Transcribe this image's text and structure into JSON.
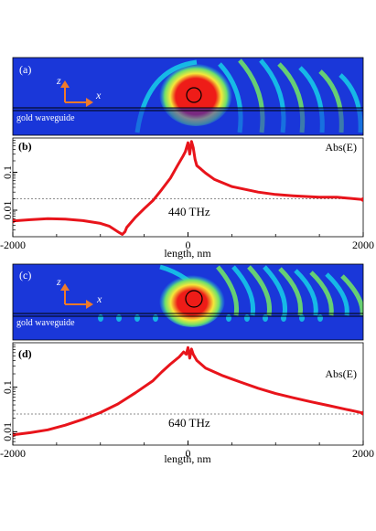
{
  "colors": {
    "curve": "#e8141b",
    "field_bg": "#1a37d9",
    "field_cyan": "#16c8e8",
    "field_green": "#6fe06a",
    "field_yellow": "#f5e83a",
    "field_red": "#ee1c18",
    "axis_arrow": "#f07a2a",
    "dashed": "#666666",
    "waveguide_line": "#000000"
  },
  "panels": {
    "a": {
      "label": "(a)",
      "axis_z": "z",
      "axis_x": "x",
      "waveguide_label": "gold waveguide"
    },
    "c": {
      "label": "(c)",
      "axis_z": "z",
      "axis_x": "x",
      "waveguide_label": "gold waveguide"
    }
  },
  "chart_data": [
    {
      "panel": "(b)",
      "type": "line",
      "title": "",
      "legend": "Abs(E)",
      "annotation": "440 THz",
      "xlabel": "length, nm",
      "ylabel": "",
      "xlim": [
        -2000,
        2000
      ],
      "ylim": [
        0.002,
        0.8
      ],
      "yscale": "log",
      "xticks": [
        -2000,
        0,
        2000
      ],
      "yticks": [
        0.01,
        0.1
      ],
      "ytick_labels": [
        "0.01",
        "0.1"
      ],
      "reference_line": 0.02,
      "series": [
        {
          "x": [
            -2000,
            -1800,
            -1600,
            -1400,
            -1200,
            -1000,
            -900,
            -800,
            -750,
            -720,
            -700,
            -600,
            -500,
            -400,
            -300,
            -200,
            -120,
            -60,
            -30,
            0,
            20,
            40,
            60,
            80,
            100,
            150,
            200,
            300,
            500,
            800,
            1000,
            1200,
            1500,
            1700,
            1800,
            2000
          ],
          "y": [
            0.0052,
            0.0056,
            0.006,
            0.0058,
            0.0053,
            0.0045,
            0.0038,
            0.0027,
            0.0023,
            0.0027,
            0.0035,
            0.0065,
            0.011,
            0.018,
            0.035,
            0.07,
            0.15,
            0.26,
            0.35,
            0.6,
            0.3,
            0.65,
            0.45,
            0.22,
            0.15,
            0.12,
            0.095,
            0.065,
            0.042,
            0.03,
            0.026,
            0.024,
            0.022,
            0.022,
            0.021,
            0.019
          ]
        }
      ]
    },
    {
      "panel": "(d)",
      "type": "line",
      "title": "",
      "legend": "Abs(E)",
      "annotation": "640 THz",
      "xlabel": "length, nm",
      "ylabel": "",
      "xlim": [
        -2000,
        2000
      ],
      "ylim": [
        0.005,
        1.0
      ],
      "yscale": "log",
      "xticks": [
        -2000,
        0,
        2000
      ],
      "yticks": [
        0.01,
        0.1
      ],
      "ytick_labels": [
        "0.01",
        "0.1"
      ],
      "reference_line": 0.025,
      "series": [
        {
          "x": [
            -2000,
            -1800,
            -1600,
            -1400,
            -1200,
            -1000,
            -800,
            -600,
            -400,
            -300,
            -200,
            -100,
            -50,
            -20,
            0,
            20,
            40,
            60,
            100,
            200,
            400,
            600,
            800,
            1000,
            1200,
            1400,
            1600,
            1800,
            1900,
            2000
          ],
          "y": [
            0.0085,
            0.0095,
            0.011,
            0.014,
            0.019,
            0.027,
            0.042,
            0.075,
            0.14,
            0.22,
            0.33,
            0.48,
            0.62,
            0.55,
            0.78,
            0.45,
            0.72,
            0.55,
            0.4,
            0.27,
            0.18,
            0.13,
            0.095,
            0.072,
            0.058,
            0.047,
            0.039,
            0.032,
            0.029,
            0.026
          ]
        }
      ]
    }
  ]
}
